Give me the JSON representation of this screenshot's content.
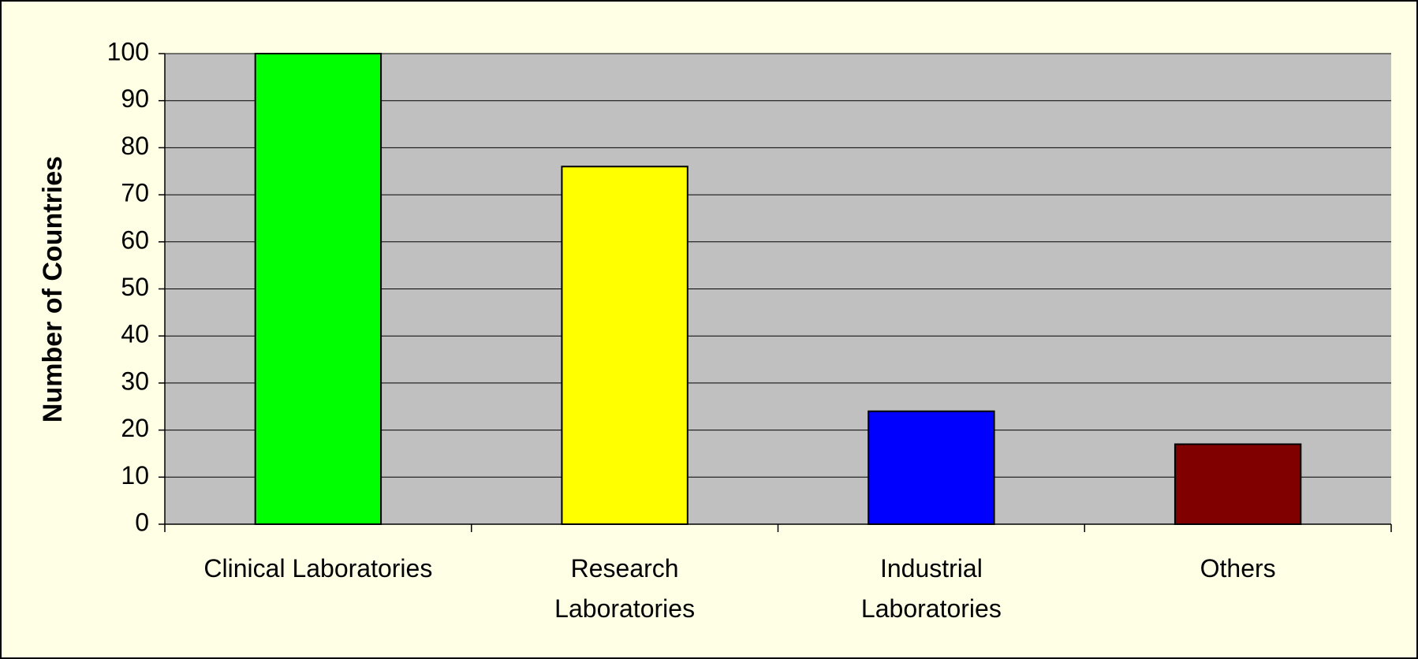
{
  "chart_data": {
    "type": "bar",
    "y_label": "Number of Countries",
    "categories": [
      "Clinical Laboratories",
      "Research\nLaboratories",
      "Industrial\nLaboratories",
      "Others"
    ],
    "values": [
      100,
      76,
      24,
      17
    ],
    "colors": [
      "#00ff00",
      "#ffff00",
      "#0000ff",
      "#800000"
    ],
    "ylim": [
      0,
      100
    ],
    "yticks": [
      0,
      10,
      20,
      30,
      40,
      50,
      60,
      70,
      80,
      90,
      100
    ],
    "grid": true
  }
}
